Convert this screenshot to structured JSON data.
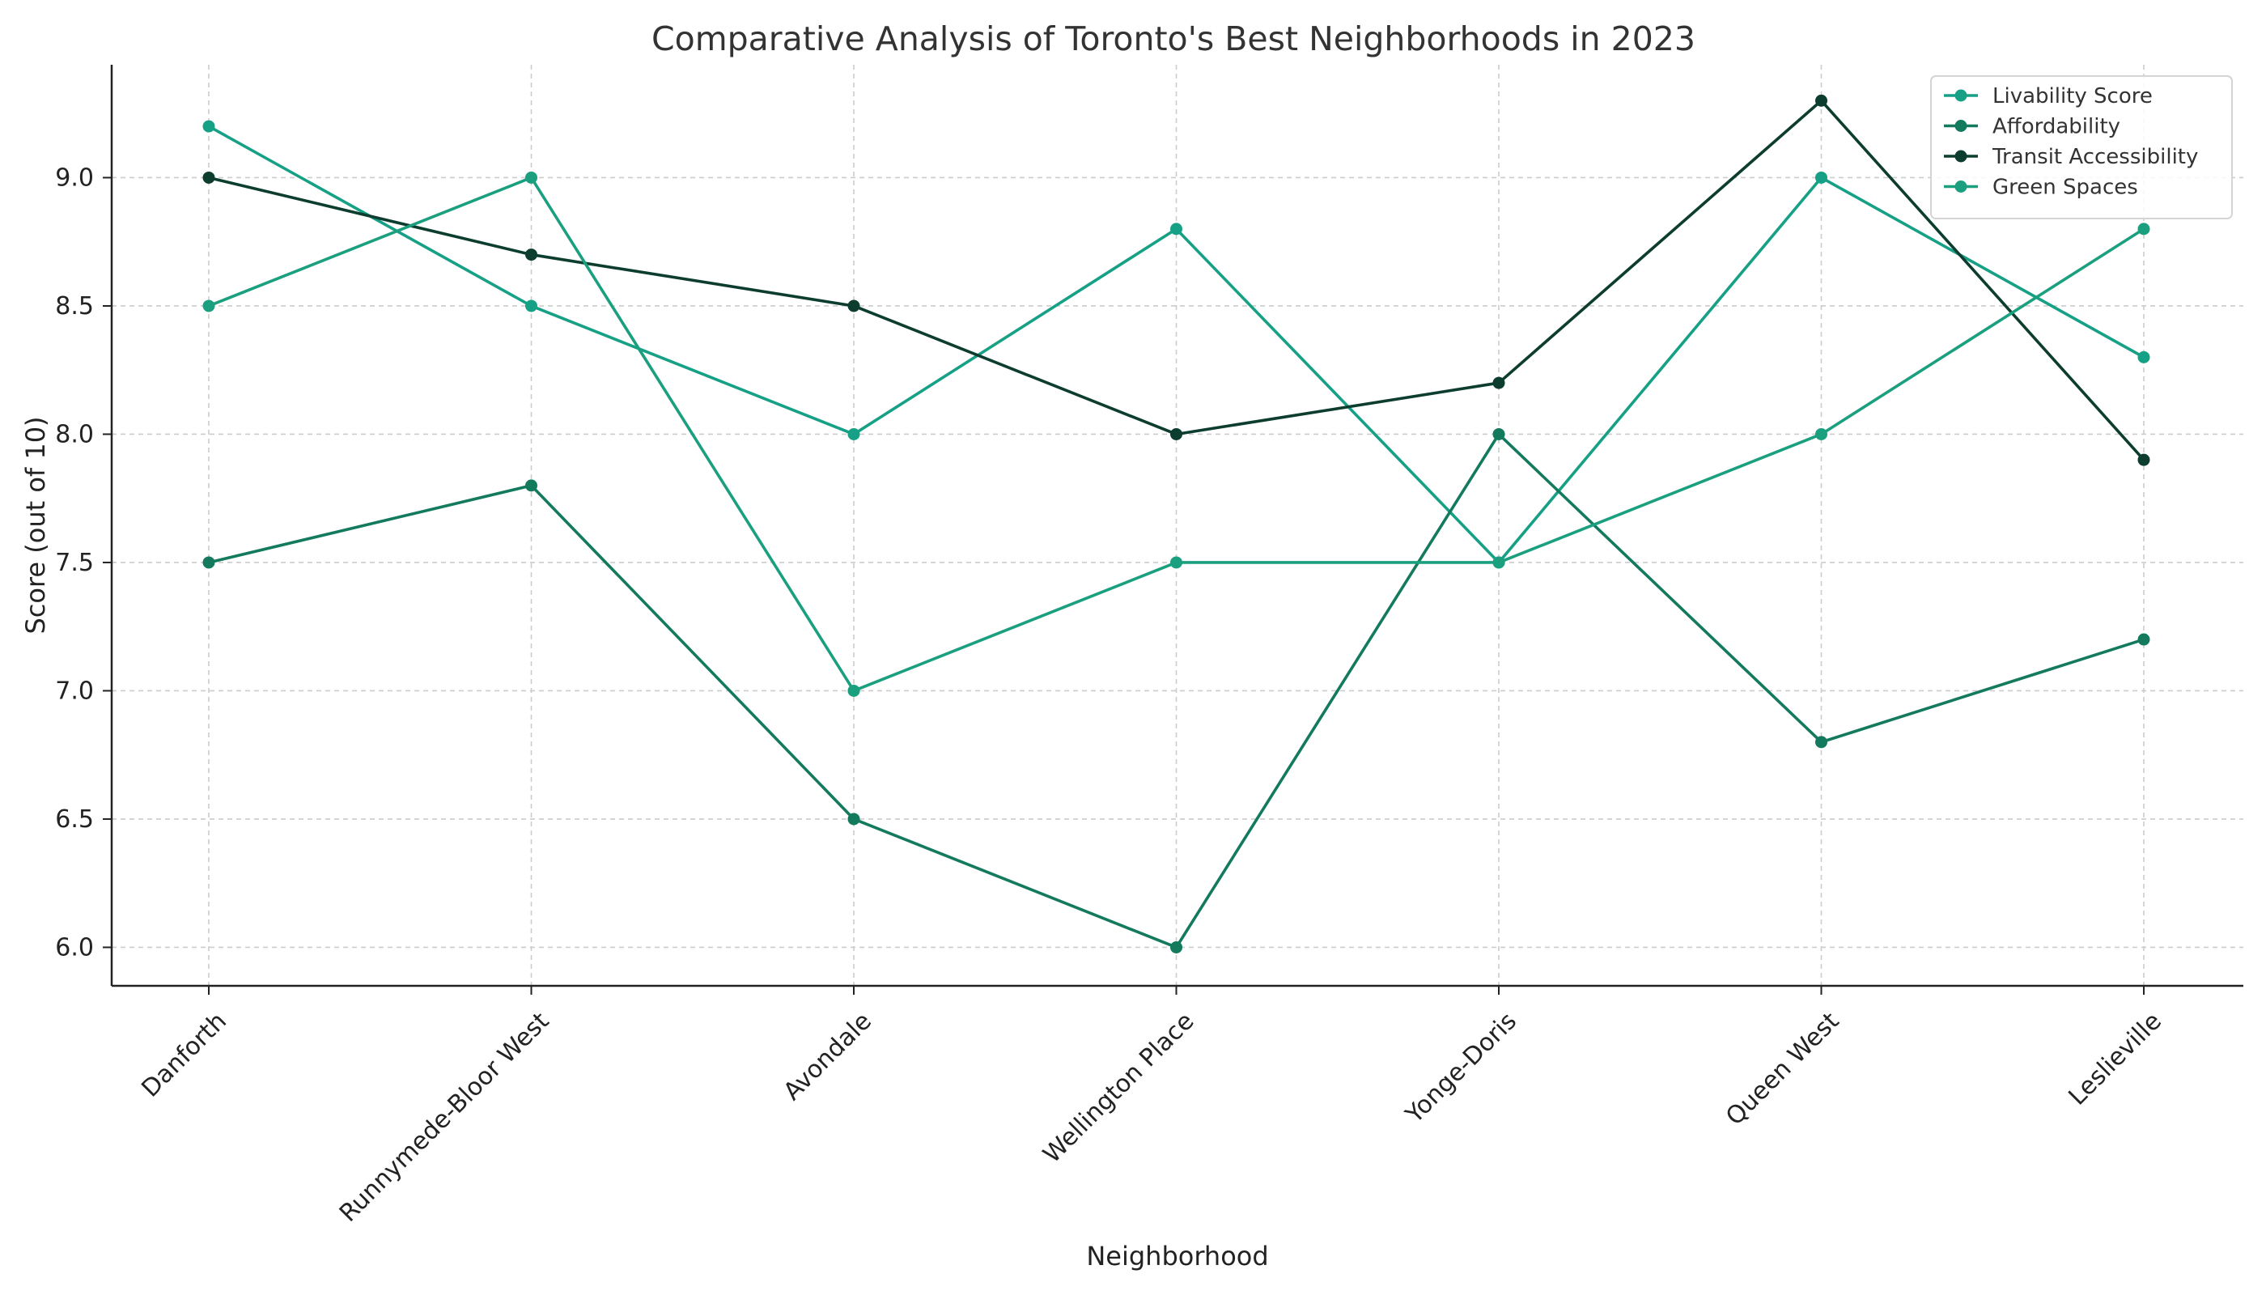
{
  "chart_data": {
    "type": "line",
    "title": "Comparative Analysis of Toronto's Best Neighborhoods in 2023",
    "xlabel": "Neighborhood",
    "ylabel": "Score (out of 10)",
    "categories": [
      "Danforth",
      "Runnymede-Bloor West",
      "Avondale",
      "Wellington Place",
      "Yonge-Doris",
      "Queen West",
      "Leslieville"
    ],
    "ylim": [
      5.85,
      9.44
    ],
    "yticks": [
      "6.0",
      "6.5",
      "7.0",
      "7.5",
      "8.0",
      "8.5",
      "9.0"
    ],
    "grid": true,
    "legend_position": "top-right",
    "series": [
      {
        "name": "Livability Score",
        "color": "#16a085",
        "values": [
          9.2,
          8.5,
          8.0,
          8.8,
          7.5,
          9.0,
          8.3
        ]
      },
      {
        "name": "Affordability",
        "color": "#137a5e",
        "values": [
          7.5,
          7.8,
          6.5,
          6.0,
          8.0,
          6.8,
          7.2
        ]
      },
      {
        "name": "Transit Accessibility",
        "color": "#0c3d2f",
        "values": [
          9.0,
          8.7,
          8.5,
          8.0,
          8.2,
          9.3,
          7.9
        ]
      },
      {
        "name": "Green Spaces",
        "color": "#1a9f7f",
        "values": [
          8.5,
          9.0,
          7.0,
          7.5,
          7.5,
          8.0,
          8.8
        ]
      }
    ]
  }
}
